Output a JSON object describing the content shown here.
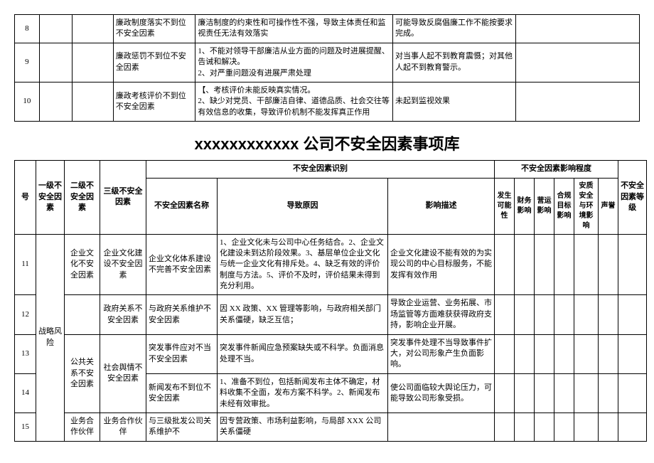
{
  "top_table": {
    "rows": [
      {
        "num": "8",
        "name": "廉政制度落实不到位不安全因素",
        "reason": "廉洁制度的约束性和可操作性不强，导致主体责任和监视责任无法有效落实",
        "impact": "可能导致反腐倡廉工作不能按要求完成。"
      },
      {
        "num": "9",
        "name": "廉政惩罚不到位不安全因素",
        "reason": "1、不能对领导干部廉洁从业方面的问题及时进展提醒、告诫和解决。\n2、对严重问题没有进展严肃处理",
        "impact": "对当事人起不到教育震慑；对其他人起不到教育警示。"
      },
      {
        "num": "10",
        "name": "廉政考核评价不到位不安全因素",
        "reason": "【、考核评价未能反映真实情况。\n2、缺少对党员、干部廉洁自律、道德品质、社会交往等有效信息的收集，导致评价机制不能发挥真正作用",
        "impact": "未起到监视效果"
      }
    ]
  },
  "title": "xxxxxxxxxxxx 公司不安全因素事项库",
  "header": {
    "col_num": "号",
    "col_lvl1": "一级不安全因素",
    "col_lvl2": "二级不安全因素",
    "col_lvl3": "三级不安全因素",
    "identify_group": "不安全因素识别",
    "col_name": "不安全因素名称",
    "col_reason": "导致原因",
    "col_impact": "影响描述",
    "degree_group": "不安全因素影响程度",
    "s1": "发生可能性",
    "s2": "财务影响",
    "s3": "营运影响",
    "s4": "合规目标影响",
    "s5": "安质安全与环境影响",
    "s6": "声誉",
    "col_grade": "不安全因素等级"
  },
  "main_table": {
    "lvl1": "战略风险",
    "rows": [
      {
        "num": "11",
        "lvl2": "企业文化不安全因素",
        "lvl3": "企业文化建设不安全因素",
        "name": "企业文化体系建设不完善不安全因素",
        "reason": "1、企业文化未与公司中心任务结合。2、企业文化建设未到达阶段效果。3、基层单位企业文化与统一企业文化有排斥处。4、缺乏有效的评价制度与方法。5、评价不及时，评价结果未得到充分利用。",
        "impact": "企业文化建设不能有效的为实现公司的中心目标服务，不能发挥有效作用"
      },
      {
        "num": "12",
        "lvl3": "政府关系不安全因素",
        "name": "与政府关系维护不安全因素",
        "reason": "因 XX 政策、XX 管理等影响，与政府相关部门关系僵硬，缺乏互信；",
        "impact": "导致企业运营、业务拓展、市场监管等方面难获获得政府支持，影响企业开展。"
      },
      {
        "num": "13",
        "lvl2": "公共关系不安全因素",
        "lvl3": "社会舆情不安全因素",
        "name": "突发事件应对不当不安全因素",
        "reason": "突发事件新闻应急预案缺失或不科学。负面消息处理不当。",
        "impact": "突发事件处理不当导致事件扩大，对公司形象产生负面影响。"
      },
      {
        "num": "14",
        "name": "新闻发布不到位不安全因素",
        "reason": "1、准备不到位，包括新闻发布主体不确定，材料收集不全面，发布方案不科学。2、新闻发布未经有效审批。",
        "impact": "使公司面临较大舆论压力，可能导致公司形象受损。"
      },
      {
        "num": "15",
        "lvl2": "业务合作伙伴",
        "lvl3": "业务合作伙伴",
        "name": "与三级批发公司关系维护不",
        "reason": "因专营政策、市场利益影响，与局部 XXX 公司关系僵硬",
        "impact": ""
      }
    ]
  }
}
